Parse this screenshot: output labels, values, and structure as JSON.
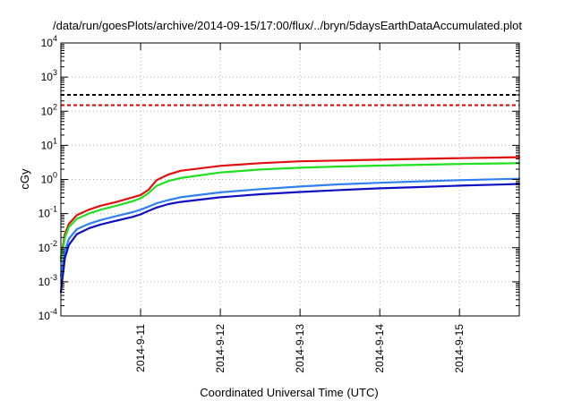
{
  "chart_data": {
    "type": "line",
    "title": "/data/run/goesPlots/archive/2014-09-15/17:00/flux/../bryn/5daysEarthDataAccumulated.plot",
    "xlabel": "Coordinated Universal Time (UTC)",
    "ylabel": "cGy",
    "x_range_days": [
      0,
      5.75
    ],
    "x_ticks": [
      {
        "label": "2014-9-11",
        "day": 1
      },
      {
        "label": "2014-9-12",
        "day": 2
      },
      {
        "label": "2014-9-13",
        "day": 3
      },
      {
        "label": "2014-9-14",
        "day": 4
      },
      {
        "label": "2014-9-15",
        "day": 5
      }
    ],
    "y_scale": "log",
    "ylim": [
      0.0001,
      10000
    ],
    "y_ticks": [
      {
        "base": "10",
        "exp": "-4",
        "value": 0.0001
      },
      {
        "base": "10",
        "exp": "-3",
        "value": 0.001
      },
      {
        "base": "10",
        "exp": "-2",
        "value": 0.01
      },
      {
        "base": "10",
        "exp": "-1",
        "value": 0.1
      },
      {
        "base": "10",
        "exp": "0",
        "value": 1
      },
      {
        "base": "10",
        "exp": "1",
        "value": 10
      },
      {
        "base": "10",
        "exp": "2",
        "value": 100
      },
      {
        "base": "10",
        "exp": "3",
        "value": 1000
      },
      {
        "base": "10",
        "exp": "4",
        "value": 10000
      }
    ],
    "grid": true,
    "reference_lines": [
      {
        "value": 300,
        "color": "#000000",
        "style": "dashed"
      },
      {
        "value": 150,
        "color": "#e00000",
        "style": "dashed"
      }
    ],
    "series": [
      {
        "color": "#e01010",
        "points": [
          [
            0,
            0.005
          ],
          [
            0.05,
            0.025
          ],
          [
            0.1,
            0.05
          ],
          [
            0.2,
            0.09
          ],
          [
            0.35,
            0.13
          ],
          [
            0.5,
            0.17
          ],
          [
            0.7,
            0.22
          ],
          [
            0.9,
            0.3
          ],
          [
            1.0,
            0.35
          ],
          [
            1.1,
            0.5
          ],
          [
            1.2,
            0.95
          ],
          [
            1.35,
            1.4
          ],
          [
            1.5,
            1.8
          ],
          [
            2.0,
            2.5
          ],
          [
            2.5,
            3.0
          ],
          [
            3.0,
            3.4
          ],
          [
            3.5,
            3.6
          ],
          [
            4.0,
            3.8
          ],
          [
            4.5,
            4.0
          ],
          [
            5.0,
            4.2
          ],
          [
            5.5,
            4.4
          ],
          [
            5.75,
            4.5
          ]
        ]
      },
      {
        "color": "#20e020",
        "points": [
          [
            0,
            0.004
          ],
          [
            0.05,
            0.02
          ],
          [
            0.1,
            0.04
          ],
          [
            0.2,
            0.07
          ],
          [
            0.35,
            0.1
          ],
          [
            0.5,
            0.13
          ],
          [
            0.7,
            0.17
          ],
          [
            0.9,
            0.23
          ],
          [
            1.0,
            0.28
          ],
          [
            1.1,
            0.4
          ],
          [
            1.2,
            0.65
          ],
          [
            1.35,
            0.9
          ],
          [
            1.5,
            1.1
          ],
          [
            2.0,
            1.6
          ],
          [
            2.5,
            1.95
          ],
          [
            3.0,
            2.2
          ],
          [
            3.5,
            2.4
          ],
          [
            4.0,
            2.55
          ],
          [
            4.5,
            2.7
          ],
          [
            5.0,
            2.85
          ],
          [
            5.5,
            2.95
          ],
          [
            5.75,
            3.0
          ]
        ]
      },
      {
        "color": "#3080f0",
        "points": [
          [
            0,
            0.0015
          ],
          [
            0.05,
            0.008
          ],
          [
            0.1,
            0.018
          ],
          [
            0.2,
            0.035
          ],
          [
            0.35,
            0.05
          ],
          [
            0.5,
            0.065
          ],
          [
            0.7,
            0.085
          ],
          [
            0.9,
            0.11
          ],
          [
            1.0,
            0.13
          ],
          [
            1.1,
            0.16
          ],
          [
            1.2,
            0.2
          ],
          [
            1.35,
            0.25
          ],
          [
            1.5,
            0.3
          ],
          [
            2.0,
            0.42
          ],
          [
            2.5,
            0.52
          ],
          [
            3.0,
            0.62
          ],
          [
            3.5,
            0.72
          ],
          [
            4.0,
            0.8
          ],
          [
            4.5,
            0.88
          ],
          [
            5.0,
            0.95
          ],
          [
            5.5,
            1.02
          ],
          [
            5.75,
            1.05
          ]
        ]
      },
      {
        "color": "#1010c0",
        "points": [
          [
            0,
            0.0005
          ],
          [
            0.05,
            0.005
          ],
          [
            0.1,
            0.012
          ],
          [
            0.2,
            0.025
          ],
          [
            0.35,
            0.037
          ],
          [
            0.5,
            0.048
          ],
          [
            0.7,
            0.062
          ],
          [
            0.9,
            0.08
          ],
          [
            1.0,
            0.095
          ],
          [
            1.1,
            0.12
          ],
          [
            1.2,
            0.15
          ],
          [
            1.35,
            0.19
          ],
          [
            1.5,
            0.22
          ],
          [
            2.0,
            0.3
          ],
          [
            2.5,
            0.37
          ],
          [
            3.0,
            0.43
          ],
          [
            3.5,
            0.49
          ],
          [
            4.0,
            0.55
          ],
          [
            4.5,
            0.6
          ],
          [
            5.0,
            0.66
          ],
          [
            5.5,
            0.71
          ],
          [
            5.75,
            0.74
          ]
        ]
      }
    ]
  }
}
